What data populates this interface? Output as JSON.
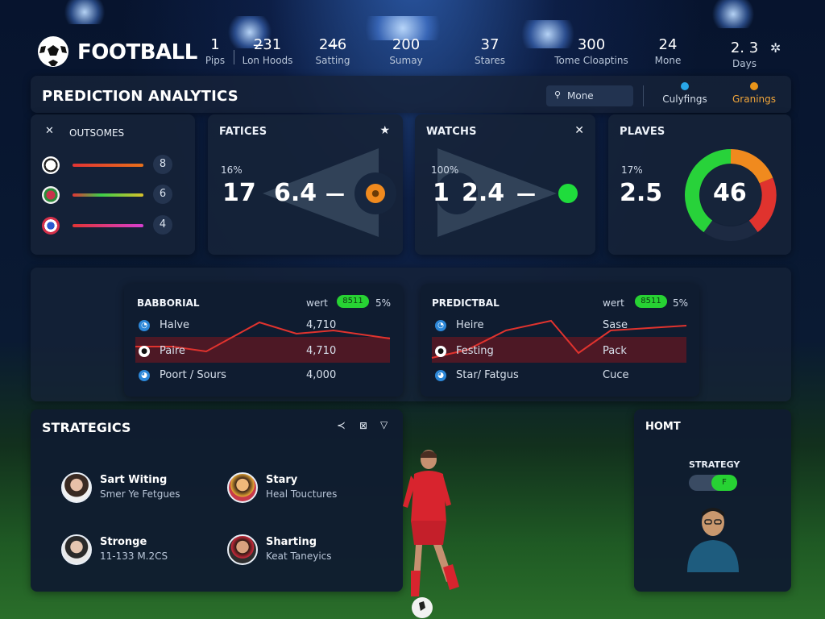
{
  "app": {
    "title": "FOOTBALL"
  },
  "topnav": [
    {
      "num": "1",
      "label": "Pips"
    },
    {
      "num": "2̶31",
      "label": "Lon Hoods"
    },
    {
      "num": "24̶6",
      "label": "Satting"
    },
    {
      "num": "200",
      "label": "Sumay"
    },
    {
      "num": "37",
      "label": "Stares"
    },
    {
      "num": "300",
      "label": "Tome Cloaptins"
    },
    {
      "num": "24",
      "label": "Mone"
    },
    {
      "num": "2.  3",
      "label": "Days"
    }
  ],
  "header": {
    "title": "PREDICTION ANALYTICS",
    "location_value": "Mone",
    "tab_left": "Culyfings",
    "tab_right": "Granings"
  },
  "outcomes": {
    "title": "OUTSOMES",
    "rows": [
      {
        "value": "8",
        "bar_color": "#e8701a"
      },
      {
        "value": "6",
        "bar_color": "#3ccf4a"
      },
      {
        "value": "4",
        "bar_color": "#d63fd0"
      }
    ]
  },
  "fatices": {
    "title": "FATICES",
    "pct": "16%",
    "left": "17",
    "right": "6.4",
    "dash": "—",
    "dot_color": "#f08a1e"
  },
  "watchs": {
    "title": "WATCHS",
    "pct": "100%",
    "left": "1",
    "right": "2.4",
    "dash": "—",
    "dot_color": "#1fdc3c"
  },
  "plaves": {
    "title": "PLAVES",
    "pct": "17%",
    "value": "2.5",
    "gauge_value": "46",
    "gauge_level": 0.46
  },
  "table_left": {
    "title": "BABBORIAL",
    "mid": "wert",
    "pill": "8511",
    "pct": "5%",
    "rows": [
      {
        "label": "Halve",
        "value": "4,710"
      },
      {
        "label": "Paire",
        "value": "4,710"
      },
      {
        "label": "Poort / Sours",
        "value": "4,000"
      }
    ]
  },
  "table_right": {
    "title": "PREDICTBAL",
    "mid": "wert",
    "pill": "8511",
    "pct": "5%",
    "rows": [
      {
        "label": "Heire",
        "value": "Sase"
      },
      {
        "label": "Festing",
        "value": "Pack"
      },
      {
        "label": "Star/ Fatgus",
        "value": "Cuce"
      }
    ]
  },
  "strategics": {
    "title": "STRATEGICS",
    "people": [
      {
        "name": "Sart Witing",
        "sub": "Smer Ye Fetgues"
      },
      {
        "name": "Stary",
        "sub": "Heal Touctures"
      },
      {
        "name": "Stronge",
        "sub": "11-133 M.2CS"
      },
      {
        "name": "Sharting",
        "sub": "Keat Taneyics"
      }
    ]
  },
  "homt": {
    "title": "HOMT",
    "strategy_label": "STRATEGY",
    "toggle_text": "F"
  },
  "colors": {
    "accent_orange": "#f08a1e",
    "accent_green": "#1fdc3c",
    "line_red": "#e0332e"
  }
}
